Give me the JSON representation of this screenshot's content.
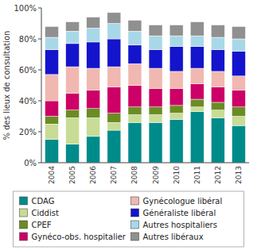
{
  "chart_data": {
    "type": "bar",
    "stacked": true,
    "y_label": "% des lieux de consultation",
    "categories": [
      "2004",
      "2005",
      "2006",
      "2007",
      "2008",
      "2009",
      "2010",
      "2011",
      "2012",
      "2013"
    ],
    "series": [
      {
        "name": "CDAG",
        "color": "#008B8B",
        "values": [
          15,
          12,
          17,
          21,
          26,
          26,
          28,
          33,
          29,
          24
        ]
      },
      {
        "name": "Ciddist",
        "color": "#c8dc96",
        "values": [
          10,
          17,
          12,
          5,
          5,
          5,
          4,
          3,
          5,
          6
        ]
      },
      {
        "name": "CPEF",
        "color": "#6b8c23",
        "values": [
          5,
          5,
          6,
          6,
          5,
          5,
          5,
          5,
          5,
          6
        ]
      },
      {
        "name": "Gynéco-obs. hospitalier",
        "color": "#cc0066",
        "values": [
          10,
          11,
          12,
          17,
          14,
          12,
          11,
          10,
          10,
          11
        ]
      },
      {
        "name": "Gynécologue libéral",
        "color": "#f0b8b0",
        "values": [
          17,
          17,
          14,
          13,
          14,
          13,
          11,
          10,
          10,
          9
        ]
      },
      {
        "name": "Généraliste libéral",
        "color": "#1414cc",
        "values": [
          16,
          15,
          17,
          18,
          12,
          12,
          16,
          14,
          14,
          16
        ]
      },
      {
        "name": "Autres hospitaliers",
        "color": "#a8d8e8",
        "values": [
          8,
          8,
          9,
          10,
          9,
          9,
          7,
          7,
          8,
          8
        ]
      },
      {
        "name": "Autres libéraux",
        "color": "#909090",
        "values": [
          7,
          6,
          7,
          7,
          7,
          7,
          7,
          9,
          8,
          8
        ]
      }
    ],
    "ylim": [
      0,
      100
    ],
    "yticks": [
      {
        "value": 0,
        "label": "0%"
      },
      {
        "value": 20,
        "label": "20%"
      },
      {
        "value": 40,
        "label": "40%"
      },
      {
        "value": 60,
        "label": "60%"
      },
      {
        "value": 80,
        "label": "80%"
      },
      {
        "value": 100,
        "label": "100%"
      }
    ],
    "grid": false,
    "legend": "bottom"
  }
}
